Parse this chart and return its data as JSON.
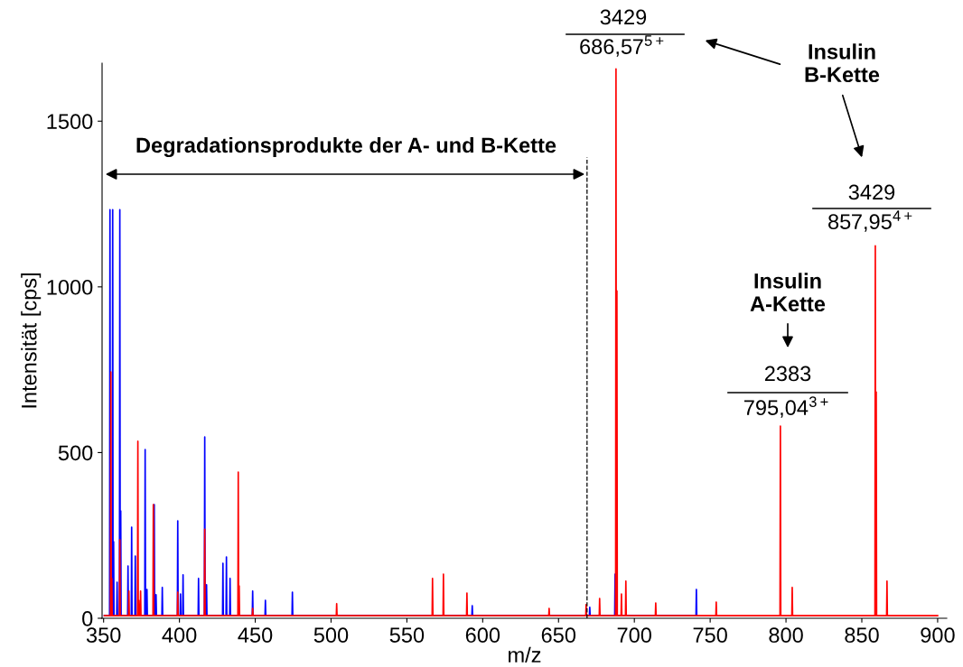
{
  "chart_data": {
    "type": "line",
    "xlabel": "m/z",
    "ylabel": "Intensität [cps]",
    "xlim": [
      349,
      906
    ],
    "xticks": [
      350,
      400,
      450,
      500,
      550,
      600,
      650,
      700,
      750,
      800,
      850,
      900
    ],
    "ylim": [
      0,
      1675
    ],
    "yticks": [
      0,
      500,
      1000,
      1500
    ],
    "grid": false,
    "legend": false,
    "series": [
      {
        "color": "#0000ff",
        "x": [
          350.5,
          353.95,
          354.2,
          354.45,
          355.75,
          356.0,
          356.25,
          356.35,
          356.6,
          356.85,
          358.65,
          358.9,
          359.15,
          360.45,
          360.7,
          360.95,
          361.05,
          361.3,
          361.55,
          365.85,
          366.1,
          366.35,
          368.25,
          368.5,
          368.75,
          370.65,
          370.9,
          371.15,
          377.15,
          377.4,
          377.65,
          378.35,
          378.6,
          378.85,
          383.15,
          383.4,
          383.65,
          384.35,
          384.6,
          384.85,
          388.45,
          388.7,
          388.95,
          398.65,
          398.9,
          399.15,
          400.45,
          400.7,
          400.95,
          402.15,
          402.4,
          402.65,
          412.35,
          412.6,
          412.85,
          416.45,
          416.7,
          416.95,
          417.65,
          417.9,
          418.15,
          428.45,
          428.7,
          428.95,
          430.75,
          431.0,
          431.25,
          433.15,
          433.4,
          433.65,
          448.05,
          448.3,
          448.55,
          456.45,
          456.7,
          456.95,
          474.25,
          474.5,
          474.75,
          592.85,
          593.1,
          593.35,
          670.35,
          670.6,
          670.85,
          687.05,
          687.3,
          687.55,
          740.65,
          740.9,
          741.15
        ],
        "values": [
          8,
          8,
          1233,
          8,
          8,
          1233,
          8,
          8,
          231,
          8,
          8,
          109,
          8,
          8,
          1233,
          8,
          8,
          324,
          8,
          8,
          158,
          8,
          8,
          275,
          8,
          8,
          188,
          8,
          8,
          509,
          8,
          8,
          87,
          8,
          8,
          343,
          8,
          8,
          71,
          8,
          8,
          93,
          8,
          8,
          294,
          8,
          8,
          73,
          8,
          8,
          131,
          8,
          8,
          120,
          8,
          8,
          547,
          8,
          8,
          101,
          8,
          8,
          166,
          8,
          8,
          185,
          8,
          8,
          120,
          8,
          8,
          82,
          8,
          8,
          54,
          8,
          8,
          79,
          8,
          8,
          38,
          8,
          8,
          33,
          8,
          8,
          133,
          8,
          8,
          87,
          8
        ]
      },
      {
        "color": "#ff0000",
        "x": [
          350.5,
          354.55,
          354.8,
          355.05,
          355.15,
          355.4,
          355.65,
          360.45,
          360.7,
          360.95,
          366.45,
          366.7,
          366.95,
          372.35,
          372.6,
          372.85,
          372.95,
          373.2,
          373.45,
          374.15,
          374.4,
          374.65,
          382.55,
          382.8,
          383.05,
          398.65,
          398.9,
          399.15,
          416.45,
          416.7,
          416.95,
          438.55,
          438.8,
          439.05,
          439.15,
          439.4,
          439.65,
          448.05,
          448.3,
          448.55,
          503.45,
          503.7,
          503.95,
          566.65,
          566.9,
          567.15,
          573.85,
          574.1,
          574.35,
          589.35,
          589.6,
          589.85,
          643.55,
          643.8,
          644.05,
          667.95,
          668.2,
          668.45,
          676.85,
          677.1,
          677.35,
          687.65,
          687.9,
          688.15,
          688.25,
          688.5,
          688.75,
          691.25,
          691.5,
          691.75,
          694.15,
          694.4,
          694.65,
          713.85,
          714.1,
          714.35,
          753.75,
          754.0,
          754.25,
          796.05,
          796.3,
          796.55,
          803.85,
          804.1,
          804.35,
          858.65,
          858.9,
          859.15,
          859.25,
          859.5,
          859.75,
          866.35,
          866.6,
          866.85,
          900
        ],
        "values": [
          8,
          8,
          743,
          8,
          8,
          120,
          8,
          8,
          237,
          8,
          8,
          82,
          8,
          8,
          534,
          8,
          8,
          54,
          8,
          8,
          82,
          8,
          8,
          343,
          8,
          8,
          79,
          8,
          8,
          269,
          8,
          8,
          441,
          8,
          8,
          98,
          8,
          8,
          30,
          8,
          8,
          44,
          8,
          8,
          120,
          8,
          8,
          133,
          8,
          8,
          76,
          8,
          8,
          30,
          8,
          8,
          41,
          8,
          8,
          60,
          8,
          8,
          1658,
          8,
          8,
          988,
          8,
          8,
          73,
          8,
          8,
          112,
          8,
          8,
          46,
          8,
          8,
          49,
          8,
          8,
          580,
          8,
          8,
          93,
          8,
          8,
          1124,
          8,
          8,
          683,
          8,
          8,
          112,
          8,
          8
        ]
      }
    ],
    "ref_lines": [
      {
        "axis": "x",
        "value": 668.8,
        "color": "#000000",
        "line_style": "dashed"
      }
    ],
    "annotations": [
      "3429",
      "686,57$^{5+}$",
      "3429",
      "857,95$^{4+}$",
      "2383",
      "795,04$^{3+}$",
      "Insulin\nB-Kette",
      "Insulin\nA-Kette",
      "Degradationsprodukte der A- und B-Kette"
    ]
  }
}
